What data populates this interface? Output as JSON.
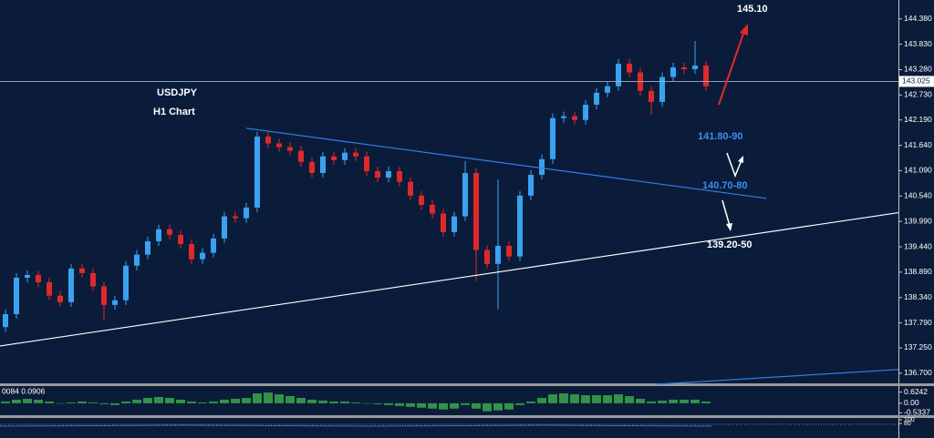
{
  "chart_data": [
    {
      "type": "candlestick",
      "title": "USDJPY",
      "subtitle": "H1 Chart",
      "xlim": [
        -0.5,
        81.58
      ],
      "ylim": [
        136.46,
        144.79
      ],
      "yticks": [
        {
          "value": 144.38,
          "label": "144.380"
        },
        {
          "value": 143.83,
          "label": "143.830"
        },
        {
          "value": 143.28,
          "label": "143.280"
        },
        {
          "value": 142.73,
          "label": "142.730"
        },
        {
          "value": 142.19,
          "label": "142.190"
        },
        {
          "value": 141.64,
          "label": "141.640"
        },
        {
          "value": 141.09,
          "label": "141.090"
        },
        {
          "value": 140.54,
          "label": "140.540"
        },
        {
          "value": 139.99,
          "label": "139.990"
        },
        {
          "value": 139.44,
          "label": "139.440"
        },
        {
          "value": 138.89,
          "label": "138.890"
        },
        {
          "value": 138.34,
          "label": "138.340"
        },
        {
          "value": 137.79,
          "label": "137.790"
        },
        {
          "value": 137.25,
          "label": "137.250"
        },
        {
          "value": 136.7,
          "label": "136.700"
        }
      ],
      "last_price": 143.025,
      "up_color": "#3aa2f0",
      "down_color": "#e02a2a",
      "open": [
        137.7,
        137.98,
        138.77,
        138.83,
        138.67,
        138.38,
        138.24,
        138.97,
        138.87,
        138.58,
        138.18,
        138.28,
        139.03,
        139.27,
        139.56,
        139.82,
        139.7,
        139.5,
        139.17,
        139.31,
        139.62,
        140.1,
        140.06,
        140.29,
        141.83,
        141.68,
        141.6,
        141.52,
        141.28,
        141.04,
        141.4,
        141.32,
        141.48,
        141.4,
        141.08,
        140.94,
        141.08,
        140.85,
        140.55,
        140.35,
        140.16,
        139.76,
        140.1,
        141.04,
        139.37,
        139.07,
        139.46,
        139.23,
        140.55,
        141.0,
        141.34,
        142.23,
        142.27,
        142.19,
        142.52,
        142.78,
        142.92,
        143.41,
        143.22,
        142.82,
        142.58,
        143.12,
        143.33,
        143.29,
        143.37
      ],
      "high": [
        138.08,
        138.87,
        138.93,
        138.93,
        138.77,
        138.48,
        139.07,
        139.07,
        138.97,
        138.68,
        138.38,
        139.13,
        139.37,
        139.66,
        139.92,
        139.92,
        139.8,
        139.6,
        139.41,
        139.72,
        140.2,
        140.2,
        140.39,
        141.93,
        141.93,
        141.78,
        141.7,
        141.62,
        141.38,
        141.5,
        141.5,
        141.58,
        141.58,
        141.5,
        141.18,
        141.18,
        141.18,
        140.95,
        140.65,
        140.45,
        140.26,
        140.2,
        141.3,
        141.14,
        139.47,
        140.9,
        139.56,
        140.65,
        141.1,
        141.44,
        142.33,
        142.37,
        142.37,
        142.62,
        142.88,
        143.02,
        143.51,
        143.51,
        143.32,
        142.92,
        143.22,
        143.43,
        143.43,
        143.9,
        143.47
      ],
      "low": [
        137.6,
        137.88,
        138.67,
        138.57,
        138.28,
        138.14,
        138.14,
        138.77,
        138.48,
        137.85,
        138.08,
        138.18,
        138.93,
        139.17,
        139.46,
        139.6,
        139.4,
        139.07,
        139.07,
        139.21,
        139.52,
        139.96,
        139.96,
        140.19,
        141.58,
        141.5,
        141.42,
        141.18,
        140.94,
        140.94,
        141.22,
        141.22,
        141.3,
        140.98,
        140.84,
        140.84,
        140.75,
        140.45,
        140.25,
        140.06,
        139.66,
        139.66,
        140.0,
        138.7,
        138.97,
        138.08,
        139.13,
        139.13,
        140.45,
        140.9,
        141.24,
        142.13,
        142.09,
        142.09,
        142.42,
        142.68,
        142.82,
        143.12,
        142.72,
        142.3,
        142.48,
        143.02,
        143.19,
        143.19,
        142.82
      ],
      "close": [
        137.98,
        138.77,
        138.83,
        138.67,
        138.38,
        138.24,
        138.97,
        138.87,
        138.58,
        138.18,
        138.28,
        139.03,
        139.27,
        139.56,
        139.82,
        139.7,
        139.5,
        139.17,
        139.31,
        139.62,
        140.1,
        140.06,
        140.29,
        141.83,
        141.68,
        141.6,
        141.52,
        141.28,
        141.04,
        141.4,
        141.32,
        141.48,
        141.4,
        141.08,
        140.94,
        141.08,
        140.85,
        140.55,
        140.35,
        140.16,
        139.76,
        140.1,
        141.04,
        139.37,
        139.07,
        139.46,
        139.23,
        140.55,
        141.0,
        141.34,
        142.23,
        142.27,
        142.19,
        142.52,
        142.78,
        142.92,
        143.41,
        143.22,
        142.82,
        142.58,
        143.12,
        143.33,
        143.29,
        143.37,
        142.92
      ],
      "trendlines": [
        {
          "color": "#2f80e8",
          "x": [
            22,
            69.5
          ],
          "values": [
            142.01,
            140.49
          ]
        },
        {
          "color": "#ffffff",
          "x": [
            -0.5,
            81.58
          ],
          "values": [
            137.29,
            140.18
          ]
        },
        {
          "color": "#2f80e8",
          "x": [
            59.5,
            81.58
          ],
          "values": [
            136.46,
            136.78
          ]
        }
      ],
      "annotations": [
        {
          "text": "145.10",
          "color": "#ffffff"
        },
        {
          "text": "141.80-90",
          "color": "#3a8ff0"
        },
        {
          "text": "140.70-80",
          "color": "#3a8ff0"
        },
        {
          "text": "139.20-50",
          "color": "#ffffff"
        }
      ]
    },
    {
      "type": "bar",
      "title": "0084 0.0906",
      "color": "#3aa84a",
      "xlim": [
        -0.5,
        81.58
      ],
      "ylim": [
        -0.72,
        0.96
      ],
      "yticks": [
        0.6242,
        {
          "value": 0,
          "label": "0.00"
        },
        -0.5337
      ],
      "values": [
        0.1,
        0.2,
        0.25,
        0.2,
        0.1,
        0.0,
        0.05,
        0.1,
        0.05,
        -0.05,
        -0.1,
        0.1,
        0.2,
        0.3,
        0.35,
        0.3,
        0.2,
        0.1,
        0.05,
        0.1,
        0.2,
        0.25,
        0.3,
        0.55,
        0.6,
        0.5,
        0.4,
        0.3,
        0.2,
        0.15,
        0.1,
        0.1,
        0.05,
        0,
        -0.05,
        -0.1,
        -0.15,
        -0.2,
        -0.25,
        -0.3,
        -0.35,
        -0.3,
        -0.1,
        -0.3,
        -0.45,
        -0.4,
        -0.35,
        -0.1,
        0.1,
        0.3,
        0.5,
        0.55,
        0.5,
        0.45,
        0.45,
        0.45,
        0.5,
        0.4,
        0.25,
        0.1,
        0.15,
        0.2,
        0.2,
        0.2,
        0.1
      ]
    },
    {
      "type": "panel",
      "ylim": [
        0,
        110
      ],
      "yticks": [
        100,
        80
      ]
    }
  ]
}
